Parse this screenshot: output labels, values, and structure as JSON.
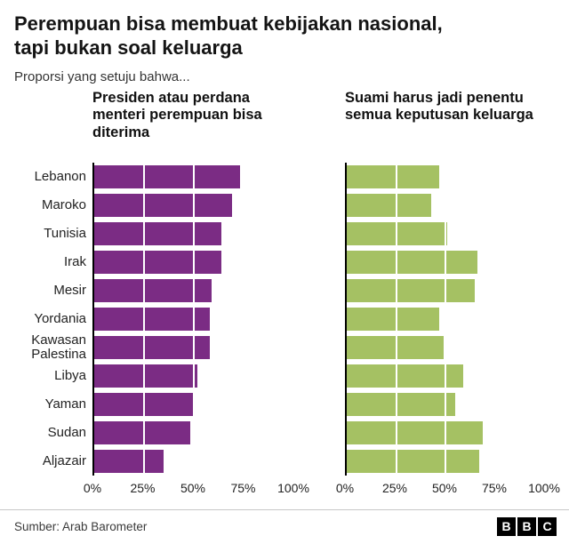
{
  "header": {
    "title": "Perempuan bisa membuat kebijakan nasional,\ntapi bukan soal keluarga",
    "subtitle": "Proporsi yang setuju bahwa..."
  },
  "chart_data": {
    "type": "bar",
    "orientation": "horizontal",
    "title": "Perempuan bisa membuat kebijakan nasional, tapi bukan soal keluarga",
    "subtitle": "Proporsi yang setuju bahwa...",
    "categories": [
      "Lebanon",
      "Maroko",
      "Tunisia",
      "Irak",
      "Mesir",
      "Yordania",
      "Kawasan Palestina",
      "Libya",
      "Yaman",
      "Sudan",
      "Aljazair"
    ],
    "series": [
      {
        "name": "Presiden atau perdana menteri perempuan bisa diterima",
        "color": "#7b2c84",
        "values": [
          73,
          69,
          64,
          64,
          59,
          58,
          58,
          52,
          50,
          48,
          35
        ]
      },
      {
        "name": "Suami harus jadi penentu semua keputusan keluarga",
        "color": "#a5c163",
        "values": [
          47,
          43,
          51,
          66,
          65,
          47,
          49,
          59,
          55,
          69,
          67
        ]
      }
    ],
    "x_ticks": [
      "0%",
      "25%",
      "50%",
      "75%",
      "100%"
    ],
    "tick_positions": [
      0,
      25,
      50,
      75,
      100
    ],
    "gridlines_at": [
      25,
      50,
      75,
      100
    ],
    "xlim": [
      0,
      100
    ],
    "legend_position": "column-headers"
  },
  "footer": {
    "source": "Sumber: Arab Barometer",
    "bbc_letters": [
      "B",
      "B",
      "C"
    ]
  }
}
